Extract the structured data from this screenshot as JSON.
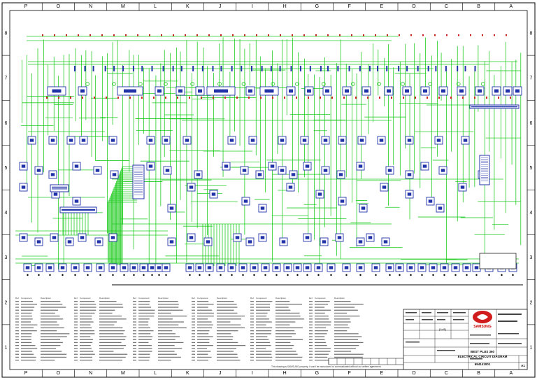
{
  "column_labels": [
    "P",
    "O",
    "N",
    "M",
    "L",
    "K",
    "J",
    "I",
    "H",
    "G",
    "F",
    "E",
    "D",
    "C",
    "B",
    "A"
  ],
  "row_labels": [
    "8",
    "7",
    "6",
    "5",
    "4",
    "3",
    "2",
    "1"
  ],
  "colors": {
    "wire": "#22cc22",
    "component": "#2233aa",
    "fuse": "#cc2222",
    "frame": "#000000"
  },
  "legend": {
    "header_ref": "Ref",
    "header_component": "Component",
    "header_description": "Description",
    "rows_per_column": 21,
    "columns": 6
  },
  "title_block": {
    "logo_text": "SAMSUNG",
    "project": "BEST PLUS 360",
    "drawing_title": "ELECTRICAL CIRCUIT DIAGRAM",
    "drawing_number": "654141001",
    "sheet_size": "A1",
    "rev": "(1of1)",
    "notice": "This drawing is SAMSUNG property. It can't be reproduced or communicated without our written agreement."
  }
}
